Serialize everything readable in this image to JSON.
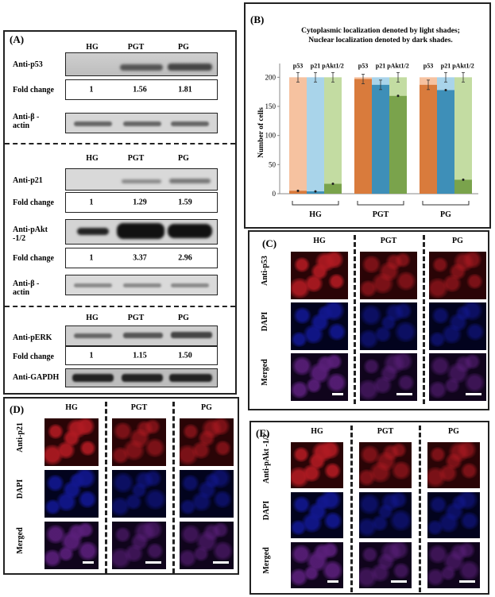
{
  "panel_a": {
    "label": "(A)",
    "groups": [
      "HG",
      "PGT",
      "PG"
    ],
    "p53_label": "Anti-p53",
    "fold_change_label": "Fold change",
    "p53_fold": [
      "1",
      "1.56",
      "1.81"
    ],
    "beta_actin_label": [
      "Anti-β -",
      "actin"
    ],
    "p21_label": "Anti-p21",
    "p21_fold": [
      "1",
      "1.29",
      "1.59"
    ],
    "pakt_label": [
      "Anti-pAkt",
      "-1/2"
    ],
    "pakt_fold": [
      "1",
      "3.37",
      "2.96"
    ],
    "perk_label": "Anti-pERK",
    "perk_fold": [
      "1",
      "1.15",
      "1.50"
    ],
    "gapdh_label": "Anti-GAPDH"
  },
  "panel_b": {
    "label": "(B)",
    "title_line1": "Cytoplasmic localization denoted by light shades;",
    "title_line2": "Nuclear localization denoted by dark shades.",
    "ylabel": "Number of cells",
    "yticks": [
      "0",
      "50",
      "100",
      "150",
      "200"
    ],
    "bar_labels": [
      "p53",
      "p21",
      "pAkt1/2"
    ]
  },
  "chart_data": {
    "type": "bar",
    "stacked": true,
    "categories": [
      "HG",
      "PGT",
      "PG"
    ],
    "ylabel": "Number of cells",
    "ylim": [
      0,
      210
    ],
    "series": [
      {
        "name": "p53",
        "nuclear": [
          5,
          197,
          187
        ],
        "total": [
          200,
          200,
          200
        ],
        "colors": {
          "light": "#F6C2A0",
          "dark": "#D97B3C"
        }
      },
      {
        "name": "p21",
        "nuclear": [
          4,
          187,
          178
        ],
        "total": [
          200,
          200,
          200
        ],
        "colors": {
          "light": "#A9D4EA",
          "dark": "#3E8FB8"
        }
      },
      {
        "name": "pAkt1/2",
        "nuclear": [
          17,
          168,
          24
        ],
        "total": [
          200,
          200,
          200
        ],
        "colors": {
          "light": "#C3DCA2",
          "dark": "#7AA34C"
        }
      }
    ]
  },
  "panel_c": {
    "label": "(C)",
    "cols": [
      "HG",
      "PGT",
      "PG"
    ],
    "rows": [
      "Anti-p53",
      "DAPI",
      "Merged"
    ]
  },
  "panel_d": {
    "label": "(D)",
    "cols": [
      "HG",
      "PGT",
      "PG"
    ],
    "rows": [
      "Anti-p21",
      "DAPI",
      "Merged"
    ]
  },
  "panel_e": {
    "label": "(E)",
    "cols": [
      "HG",
      "PGT",
      "PG"
    ],
    "rows": [
      "Anti-pAkt -1/2",
      "DAPI",
      "Merged"
    ]
  }
}
